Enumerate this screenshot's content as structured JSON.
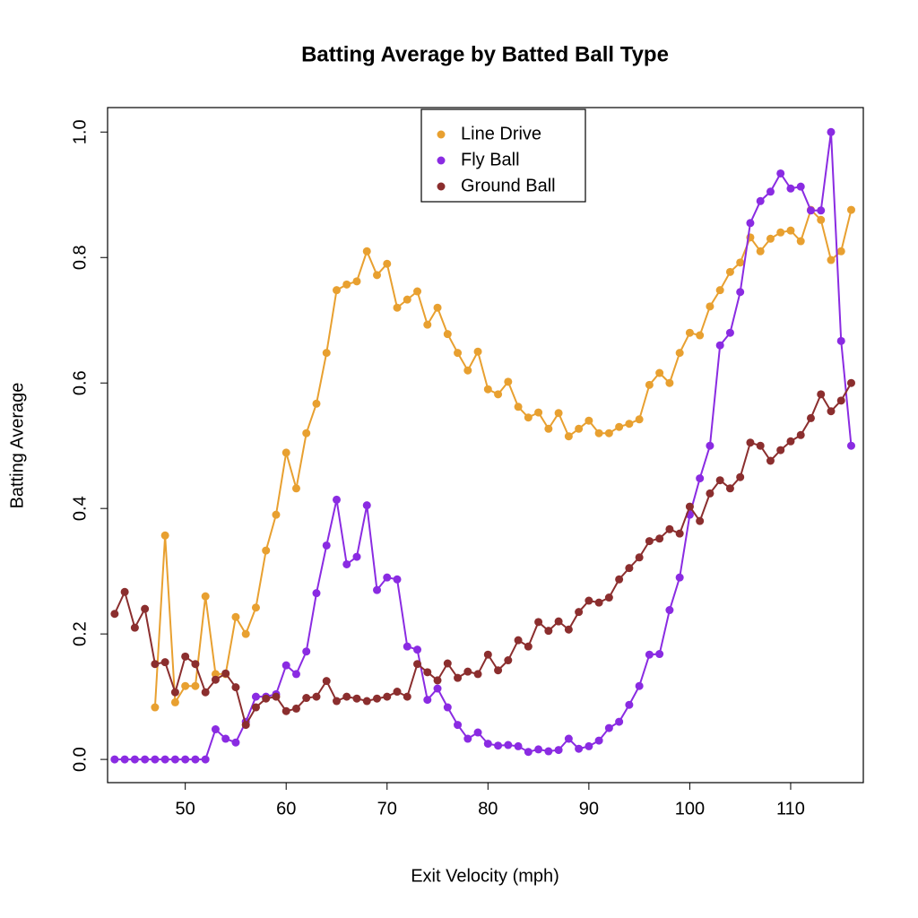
{
  "chart_data": {
    "type": "line",
    "title": "Batting Average by Batted Ball Type",
    "x_label": "Exit Velocity (mph)",
    "y_label": "Batting Average",
    "x": [
      43,
      44,
      45,
      46,
      47,
      48,
      49,
      50,
      51,
      52,
      53,
      54,
      55,
      56,
      57,
      58,
      59,
      60,
      61,
      62,
      63,
      64,
      65,
      66,
      67,
      68,
      69,
      70,
      71,
      72,
      73,
      74,
      75,
      76,
      77,
      78,
      79,
      80,
      81,
      82,
      83,
      84,
      85,
      86,
      87,
      88,
      89,
      90,
      91,
      92,
      93,
      94,
      95,
      96,
      97,
      98,
      99,
      100,
      101,
      102,
      103,
      104,
      105,
      106,
      107,
      108,
      109,
      110,
      111,
      112,
      113,
      114,
      115,
      116
    ],
    "series": [
      {
        "name": "Line Drive",
        "color": "#e8a030",
        "values": [
          null,
          null,
          null,
          null,
          0.083,
          0.357,
          0.091,
          0.117,
          0.117,
          0.26,
          0.136,
          0.136,
          0.227,
          0.2,
          0.242,
          0.333,
          0.39,
          0.489,
          0.432,
          0.52,
          0.567,
          0.648,
          0.748,
          0.757,
          0.762,
          0.81,
          0.772,
          0.79,
          0.72,
          0.733,
          0.746,
          0.693,
          0.72,
          0.678,
          0.648,
          0.62,
          0.65,
          0.59,
          0.582,
          0.602,
          0.562,
          0.545,
          0.553,
          0.527,
          0.552,
          0.515,
          0.527,
          0.54,
          0.52,
          0.52,
          0.53,
          0.535,
          0.542,
          0.597,
          0.616,
          0.6,
          0.648,
          0.68,
          0.676,
          0.722,
          0.748,
          0.777,
          0.792,
          0.832,
          0.81,
          0.83,
          0.84,
          0.843,
          0.826,
          0.876,
          0.86,
          0.796,
          0.81,
          0.876
        ]
      },
      {
        "name": "Fly Ball",
        "color": "#8a2be2",
        "values": [
          0,
          0,
          0,
          0,
          0,
          0,
          0,
          0,
          0,
          0,
          0.048,
          0.033,
          0.027,
          0.06,
          0.1,
          0.1,
          0.104,
          0.15,
          0.136,
          0.172,
          0.265,
          0.341,
          0.414,
          0.311,
          0.323,
          0.405,
          0.27,
          0.29,
          0.287,
          0.18,
          0.175,
          0.095,
          0.113,
          0.083,
          0.055,
          0.033,
          0.043,
          0.025,
          0.022,
          0.023,
          0.021,
          0.012,
          0.016,
          0.013,
          0.015,
          0.033,
          0.017,
          0.021,
          0.03,
          0.05,
          0.06,
          0.087,
          0.117,
          0.167,
          0.168,
          0.238,
          0.29,
          0.39,
          0.448,
          0.5,
          0.66,
          0.68,
          0.745,
          0.855,
          0.89,
          0.905,
          0.934,
          0.91,
          0.913,
          0.875,
          0.875,
          1.0,
          0.667,
          0.5
        ]
      },
      {
        "name": "Ground Ball",
        "color": "#8b2e2e",
        "values": [
          0.232,
          0.267,
          0.21,
          0.24,
          0.152,
          0.155,
          0.107,
          0.164,
          0.152,
          0.107,
          0.127,
          0.137,
          0.115,
          0.055,
          0.083,
          0.097,
          0.1,
          0.077,
          0.081,
          0.098,
          0.1,
          0.125,
          0.093,
          0.1,
          0.097,
          0.093,
          0.097,
          0.1,
          0.108,
          0.1,
          0.152,
          0.139,
          0.126,
          0.153,
          0.13,
          0.14,
          0.136,
          0.167,
          0.142,
          0.158,
          0.19,
          0.18,
          0.219,
          0.205,
          0.22,
          0.207,
          0.235,
          0.253,
          0.25,
          0.258,
          0.287,
          0.305,
          0.322,
          0.348,
          0.352,
          0.367,
          0.36,
          0.403,
          0.38,
          0.424,
          0.445,
          0.432,
          0.45,
          0.505,
          0.5,
          0.476,
          0.493,
          0.507,
          0.517,
          0.544,
          0.582,
          0.555,
          0.572,
          0.6
        ]
      }
    ],
    "xlim": [
      42.3,
      117.2
    ],
    "xticks": [
      50,
      60,
      70,
      80,
      90,
      100,
      110
    ],
    "ylim": [
      -0.037,
      1.039
    ],
    "yticks": [
      {
        "value": 0,
        "label": "0.0"
      },
      0.2,
      0.4,
      0.6,
      0.8,
      {
        "value": 1,
        "label": "1.0"
      }
    ],
    "legend": "top"
  }
}
